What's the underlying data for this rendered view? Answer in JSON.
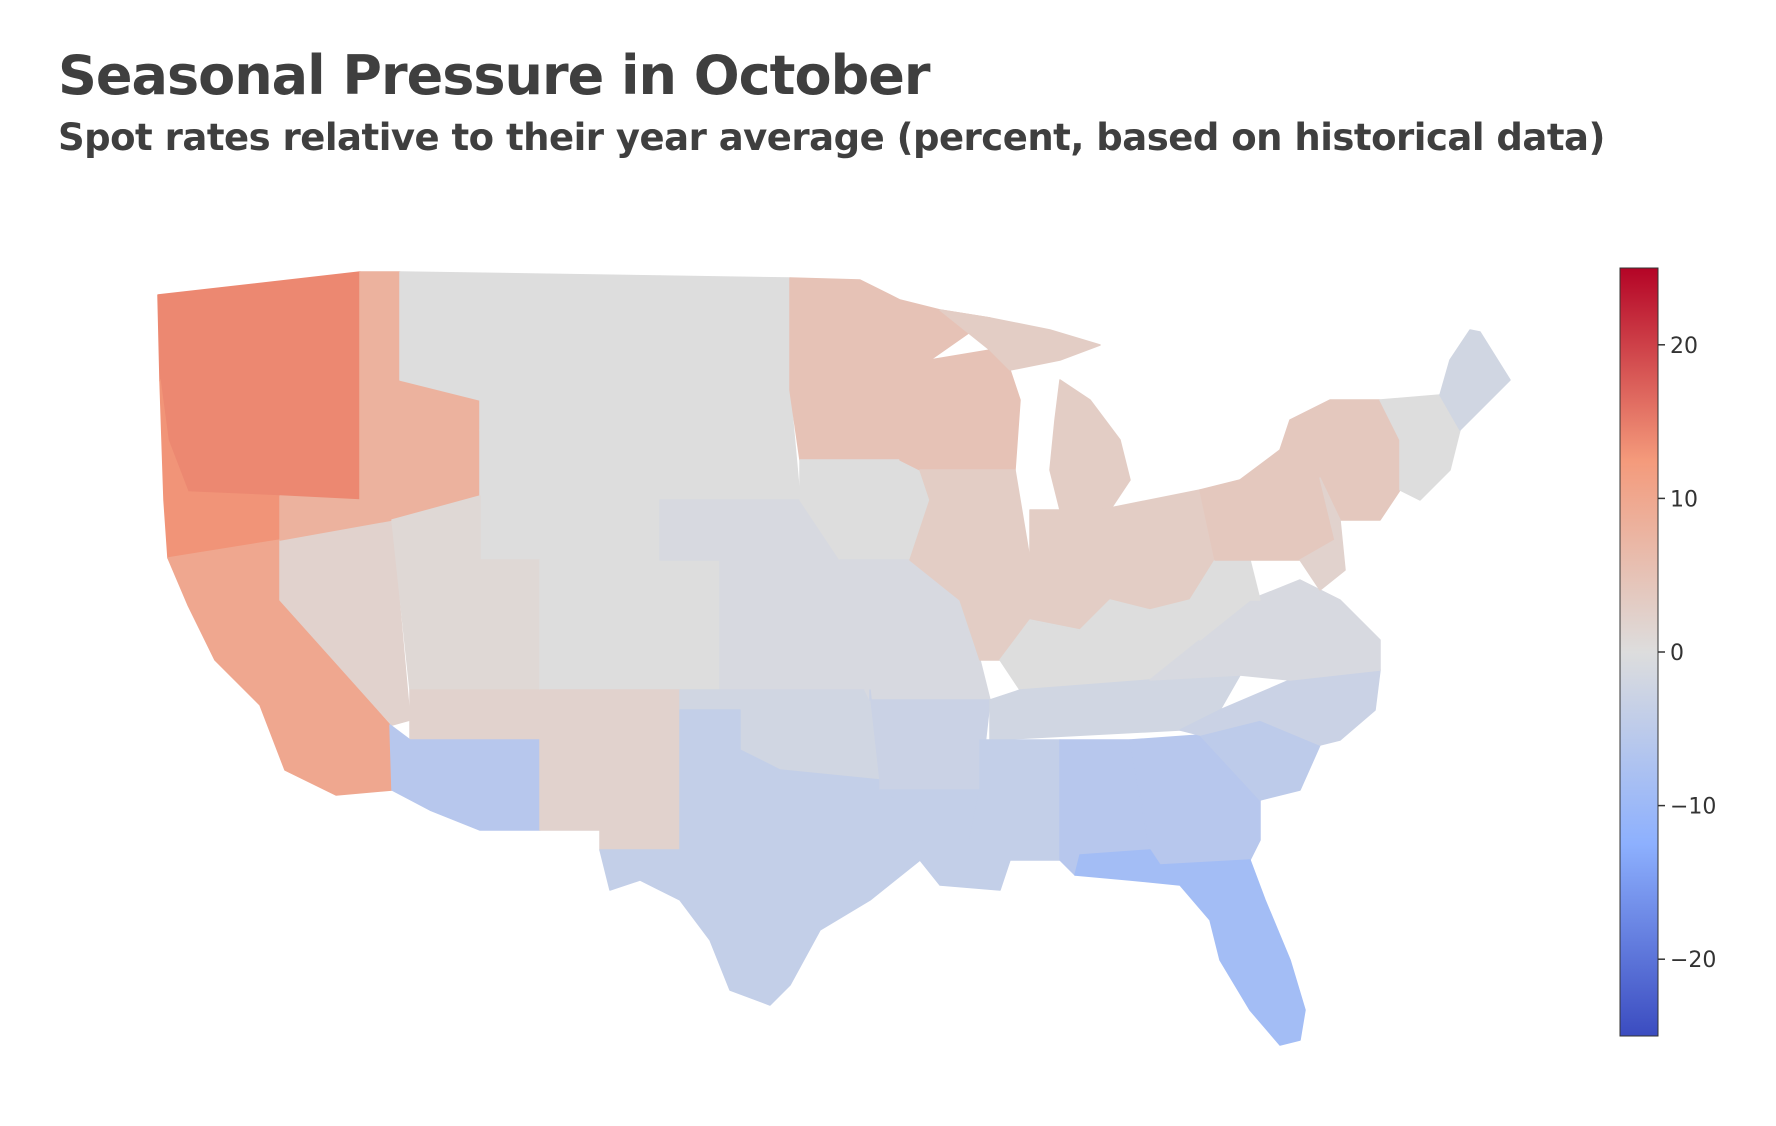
{
  "title": "Seasonal Pressure in October",
  "subtitle": "Spot rates relative to their year average (percent, based on historical data)",
  "colorbar": {
    "min": -25,
    "max": 25,
    "ticks": [
      {
        "value": 20,
        "label": "20"
      },
      {
        "value": 10,
        "label": "10"
      },
      {
        "value": 0,
        "label": "0"
      },
      {
        "value": -10,
        "label": "−10"
      },
      {
        "value": -20,
        "label": "−20"
      }
    ],
    "colormap": "coolwarm",
    "colors": {
      "low": "#3b4cc0",
      "mid": "#dddddd",
      "high": "#b40426"
    }
  },
  "regions": [
    {
      "name": "Washington",
      "value": 14
    },
    {
      "name": "Oregon",
      "value": 13
    },
    {
      "name": "California",
      "value": 10
    },
    {
      "name": "Nevada",
      "value": 2
    },
    {
      "name": "Idaho",
      "value": 8
    },
    {
      "name": "Montana",
      "value": 0
    },
    {
      "name": "Wyoming",
      "value": 0
    },
    {
      "name": "Utah",
      "value": 1
    },
    {
      "name": "Arizona (south)",
      "value": -6
    },
    {
      "name": "Arizona (north)",
      "value": 2
    },
    {
      "name": "Colorado",
      "value": 0
    },
    {
      "name": "New Mexico",
      "value": 2
    },
    {
      "name": "North Dakota",
      "value": 0
    },
    {
      "name": "South Dakota",
      "value": 0
    },
    {
      "name": "Nebraska",
      "value": -1
    },
    {
      "name": "Kansas",
      "value": -1
    },
    {
      "name": "Oklahoma",
      "value": -2
    },
    {
      "name": "Texas",
      "value": -4
    },
    {
      "name": "Minnesota",
      "value": 5
    },
    {
      "name": "Iowa",
      "value": 0
    },
    {
      "name": "Missouri",
      "value": -1
    },
    {
      "name": "Arkansas",
      "value": -3
    },
    {
      "name": "Louisiana",
      "value": -4
    },
    {
      "name": "Wisconsin",
      "value": 5
    },
    {
      "name": "Illinois",
      "value": 3
    },
    {
      "name": "Michigan",
      "value": 3
    },
    {
      "name": "Indiana",
      "value": 3
    },
    {
      "name": "Ohio",
      "value": 3
    },
    {
      "name": "Kentucky",
      "value": 0
    },
    {
      "name": "Tennessee",
      "value": -2
    },
    {
      "name": "Mississippi",
      "value": -4
    },
    {
      "name": "Alabama",
      "value": -6
    },
    {
      "name": "Georgia",
      "value": -6
    },
    {
      "name": "Florida",
      "value": -9
    },
    {
      "name": "South Carolina",
      "value": -5
    },
    {
      "name": "North Carolina",
      "value": -3
    },
    {
      "name": "Virginia",
      "value": -1
    },
    {
      "name": "West Virginia",
      "value": 0
    },
    {
      "name": "Pennsylvania",
      "value": 4
    },
    {
      "name": "New York",
      "value": 4
    },
    {
      "name": "New Jersey",
      "value": 2
    },
    {
      "name": "New England",
      "value": 0
    },
    {
      "name": "Maine",
      "value": -2
    }
  ]
}
